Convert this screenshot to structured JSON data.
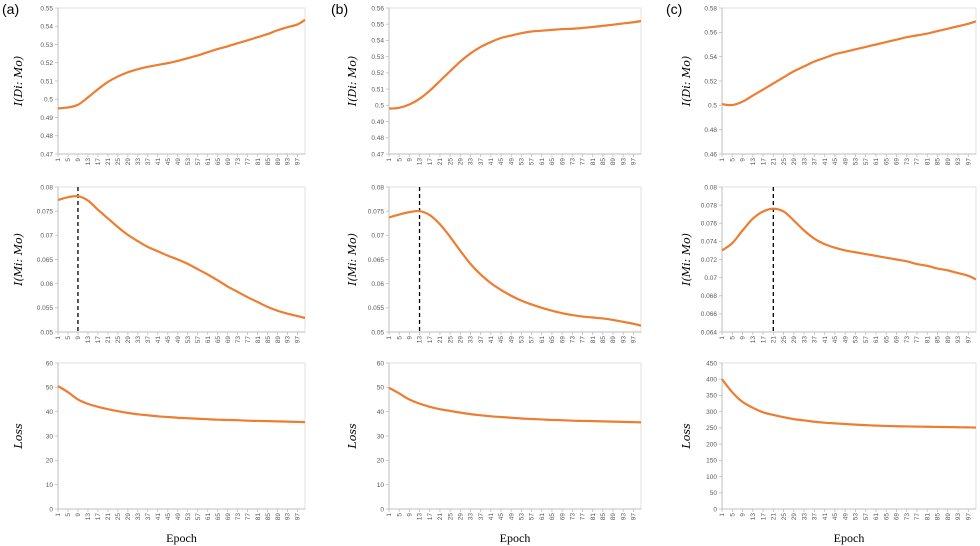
{
  "chart_data": [
    {
      "type": "line",
      "panel": "(a)",
      "ylabel": "I(Di: Mo)",
      "xlabel": "",
      "ylim": [
        0.47,
        0.55
      ],
      "yticks": [
        0.47,
        0.48,
        0.49,
        0.5,
        0.51,
        0.52,
        0.53,
        0.54,
        0.55
      ],
      "series": [
        {
          "name": "I(Di: Mo)",
          "color": "#ED7D31",
          "x": [
            1,
            5,
            9,
            13,
            17,
            21,
            25,
            29,
            33,
            37,
            41,
            45,
            49,
            53,
            57,
            61,
            65,
            69,
            73,
            77,
            81,
            85,
            89,
            93,
            97,
            100
          ],
          "values": [
            0.495,
            0.4955,
            0.497,
            0.501,
            0.5055,
            0.5095,
            0.5125,
            0.5148,
            0.5165,
            0.5178,
            0.5188,
            0.5198,
            0.521,
            0.5225,
            0.524,
            0.5258,
            0.5275,
            0.529,
            0.5307,
            0.5323,
            0.534,
            0.5357,
            0.5378,
            0.5395,
            0.541,
            0.5435
          ]
        }
      ]
    },
    {
      "type": "line",
      "panel": "",
      "ylabel": "I(Mi: Mo)",
      "xlabel": "",
      "ylim": [
        0.05,
        0.08
      ],
      "yticks": [
        0.05,
        0.055,
        0.06,
        0.065,
        0.07,
        0.075,
        0.08
      ],
      "peak_epoch": 9,
      "series": [
        {
          "name": "I(Mi: Mo)",
          "color": "#ED7D31",
          "x": [
            1,
            5,
            9,
            13,
            17,
            21,
            25,
            29,
            33,
            37,
            41,
            45,
            49,
            53,
            57,
            61,
            65,
            69,
            73,
            77,
            81,
            85,
            89,
            93,
            97,
            100
          ],
          "values": [
            0.0773,
            0.0779,
            0.0781,
            0.0772,
            0.0753,
            0.0735,
            0.0717,
            0.0701,
            0.0688,
            0.0676,
            0.0667,
            0.0658,
            0.065,
            0.0641,
            0.063,
            0.0619,
            0.0607,
            0.0594,
            0.0583,
            0.0572,
            0.0562,
            0.0552,
            0.0544,
            0.0538,
            0.0533,
            0.0529
          ]
        }
      ]
    },
    {
      "type": "line",
      "panel": "",
      "ylabel": "Loss",
      "xlabel": "Epoch",
      "ylim": [
        0,
        60
      ],
      "yticks": [
        0,
        10,
        20,
        30,
        40,
        50,
        60
      ],
      "series": [
        {
          "name": "Loss",
          "color": "#ED7D31",
          "x": [
            1,
            5,
            9,
            13,
            17,
            21,
            25,
            29,
            33,
            37,
            41,
            45,
            49,
            53,
            57,
            61,
            65,
            69,
            73,
            77,
            81,
            85,
            89,
            93,
            97,
            100
          ],
          "values": [
            50.5,
            48,
            45,
            43.2,
            42,
            41,
            40.2,
            39.5,
            38.9,
            38.5,
            38.1,
            37.8,
            37.5,
            37.3,
            37.1,
            36.9,
            36.7,
            36.6,
            36.5,
            36.3,
            36.2,
            36.1,
            36,
            35.9,
            35.8,
            35.7
          ]
        }
      ]
    },
    {
      "type": "line",
      "panel": "(b)",
      "ylabel": "I(Di: Mo)",
      "xlabel": "",
      "ylim": [
        0.47,
        0.56
      ],
      "yticks": [
        0.47,
        0.48,
        0.49,
        0.5,
        0.51,
        0.52,
        0.53,
        0.54,
        0.55,
        0.56
      ],
      "series": [
        {
          "name": "I(Di: Mo)",
          "color": "#ED7D31",
          "x": [
            1,
            5,
            9,
            13,
            17,
            21,
            25,
            29,
            33,
            37,
            41,
            45,
            49,
            53,
            57,
            61,
            65,
            69,
            73,
            77,
            81,
            85,
            89,
            93,
            97,
            100
          ],
          "values": [
            0.498,
            0.4985,
            0.5005,
            0.504,
            0.509,
            0.515,
            0.521,
            0.527,
            0.532,
            0.536,
            0.539,
            0.5415,
            0.543,
            0.5445,
            0.5455,
            0.546,
            0.5465,
            0.547,
            0.5472,
            0.5477,
            0.5483,
            0.549,
            0.5497,
            0.5505,
            0.5512,
            0.552
          ]
        }
      ]
    },
    {
      "type": "line",
      "panel": "",
      "ylabel": "I(Mi: Mo)",
      "xlabel": "",
      "ylim": [
        0.05,
        0.08
      ],
      "yticks": [
        0.05,
        0.055,
        0.06,
        0.065,
        0.07,
        0.075,
        0.08
      ],
      "peak_epoch": 13,
      "series": [
        {
          "name": "I(Mi: Mo)",
          "color": "#ED7D31",
          "x": [
            1,
            5,
            9,
            13,
            17,
            21,
            25,
            29,
            33,
            37,
            41,
            45,
            49,
            53,
            57,
            61,
            65,
            69,
            73,
            77,
            81,
            85,
            89,
            93,
            97,
            100
          ],
          "values": [
            0.0737,
            0.0743,
            0.0748,
            0.075,
            0.0742,
            0.0723,
            0.0697,
            0.0668,
            0.0641,
            0.0619,
            0.0601,
            0.0587,
            0.0575,
            0.0565,
            0.0557,
            0.055,
            0.0544,
            0.0539,
            0.0535,
            0.0532,
            0.053,
            0.0528,
            0.0525,
            0.0521,
            0.0517,
            0.0513
          ]
        }
      ]
    },
    {
      "type": "line",
      "panel": "",
      "ylabel": "Loss",
      "xlabel": "Epoch",
      "ylim": [
        0,
        60
      ],
      "yticks": [
        0,
        10,
        20,
        30,
        40,
        50,
        60
      ],
      "series": [
        {
          "name": "Loss",
          "color": "#ED7D31",
          "x": [
            1,
            5,
            9,
            13,
            17,
            21,
            25,
            29,
            33,
            37,
            41,
            45,
            49,
            53,
            57,
            61,
            65,
            69,
            73,
            77,
            81,
            85,
            89,
            93,
            97,
            100
          ],
          "values": [
            49.8,
            47.5,
            45,
            43.3,
            42,
            41,
            40.3,
            39.6,
            39,
            38.5,
            38.1,
            37.8,
            37.5,
            37.2,
            37,
            36.8,
            36.6,
            36.5,
            36.3,
            36.2,
            36.1,
            36,
            35.9,
            35.8,
            35.7,
            35.6
          ]
        }
      ]
    },
    {
      "type": "line",
      "panel": "(c)",
      "ylabel": "I(Di: Mo)",
      "xlabel": "",
      "ylim": [
        0.46,
        0.58
      ],
      "yticks": [
        0.46,
        0.48,
        0.5,
        0.52,
        0.54,
        0.56,
        0.58
      ],
      "series": [
        {
          "name": "I(Di: Mo)",
          "color": "#ED7D31",
          "x": [
            1,
            5,
            9,
            13,
            17,
            21,
            25,
            29,
            33,
            37,
            41,
            45,
            49,
            53,
            57,
            61,
            65,
            69,
            73,
            77,
            81,
            85,
            89,
            93,
            97,
            100
          ],
          "values": [
            0.501,
            0.5002,
            0.503,
            0.508,
            0.513,
            0.518,
            0.523,
            0.528,
            0.532,
            0.536,
            0.539,
            0.542,
            0.544,
            0.546,
            0.548,
            0.55,
            0.552,
            0.554,
            0.556,
            0.5575,
            0.559,
            0.561,
            0.563,
            0.565,
            0.567,
            0.569
          ]
        }
      ]
    },
    {
      "type": "line",
      "panel": "",
      "ylabel": "I(Mi: Mo)",
      "xlabel": "",
      "ylim": [
        0.064,
        0.08
      ],
      "yticks": [
        0.064,
        0.066,
        0.068,
        0.07,
        0.072,
        0.074,
        0.076,
        0.078,
        0.08
      ],
      "peak_epoch": 21,
      "series": [
        {
          "name": "I(Mi: Mo)",
          "color": "#ED7D31",
          "x": [
            1,
            5,
            9,
            13,
            17,
            21,
            25,
            29,
            33,
            37,
            41,
            45,
            49,
            53,
            57,
            61,
            65,
            69,
            73,
            77,
            81,
            85,
            89,
            93,
            97,
            100
          ],
          "values": [
            0.073,
            0.0738,
            0.0752,
            0.0765,
            0.0773,
            0.0776,
            0.0773,
            0.0763,
            0.0752,
            0.0743,
            0.0737,
            0.0733,
            0.073,
            0.0728,
            0.0726,
            0.0724,
            0.0722,
            0.072,
            0.0718,
            0.0715,
            0.0713,
            0.071,
            0.0708,
            0.0705,
            0.0702,
            0.0698
          ]
        }
      ]
    },
    {
      "type": "line",
      "panel": "",
      "ylabel": "Loss",
      "xlabel": "Epoch",
      "ylim": [
        0,
        450
      ],
      "yticks": [
        0,
        50,
        100,
        150,
        200,
        250,
        300,
        350,
        400,
        450
      ],
      "series": [
        {
          "name": "Loss",
          "color": "#ED7D31",
          "x": [
            1,
            5,
            9,
            13,
            17,
            21,
            25,
            29,
            33,
            37,
            41,
            45,
            49,
            53,
            57,
            61,
            65,
            69,
            73,
            77,
            81,
            85,
            89,
            93,
            97,
            100
          ],
          "values": [
            400,
            360,
            330,
            312,
            298,
            290,
            283,
            277,
            273,
            269,
            266,
            264,
            262,
            260,
            258.5,
            257,
            256,
            255,
            254.5,
            254,
            253.5,
            253,
            252.5,
            252,
            251.5,
            251
          ]
        }
      ]
    }
  ],
  "x_tick_labels": [
    "1",
    "5",
    "9",
    "13",
    "17",
    "21",
    "25",
    "29",
    "33",
    "37",
    "41",
    "45",
    "49",
    "53",
    "57",
    "61",
    "65",
    "69",
    "73",
    "77",
    "81",
    "85",
    "89",
    "93",
    "97"
  ]
}
